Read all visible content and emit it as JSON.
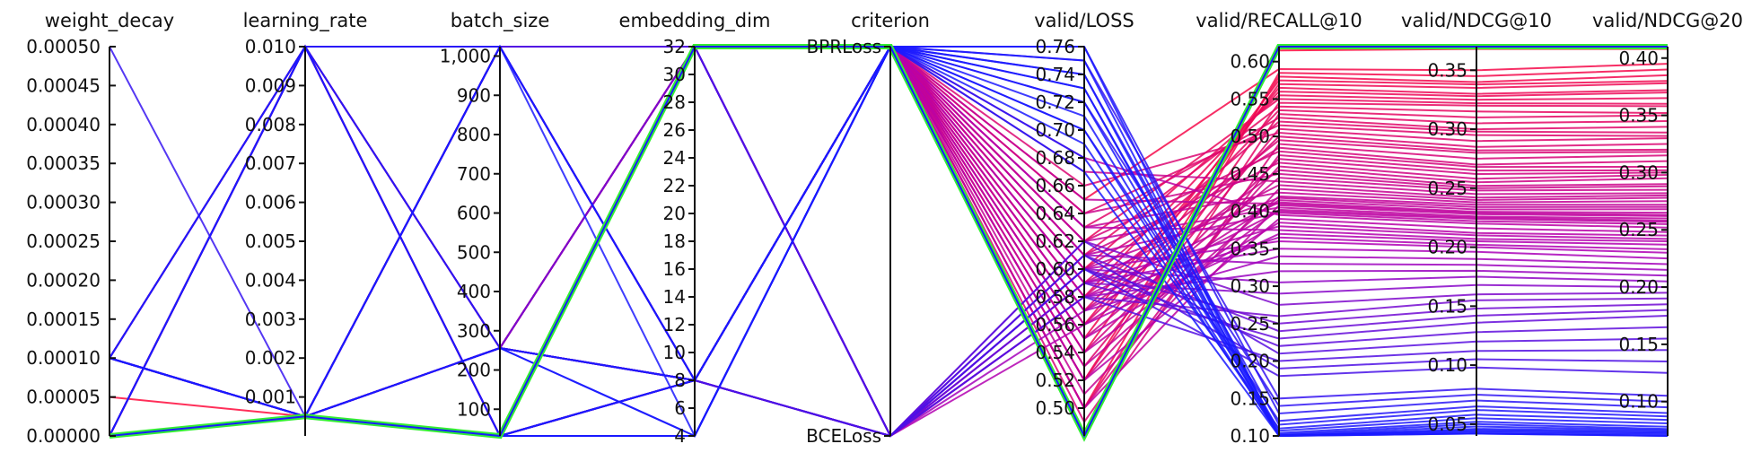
{
  "chart_data": {
    "type": "parallel_coordinates",
    "axes": [
      {
        "key": "weight_decay",
        "label": "weight_decay",
        "range": [
          0,
          0.0005
        ],
        "ticks": [
          0,
          5e-05,
          0.0001,
          0.00015,
          0.0002,
          0.00025,
          0.0003,
          0.00035,
          0.0004,
          0.00045,
          0.0005
        ],
        "tick_labels": [
          "0.00000",
          "0.00005",
          "0.00010",
          "0.00015",
          "0.00020",
          "0.00025",
          "0.00030",
          "0.00035",
          "0.00040",
          "0.00045",
          "0.00050"
        ]
      },
      {
        "key": "learning_rate",
        "label": "learning_rate",
        "range": [
          0,
          0.01
        ],
        "ticks": [
          0.001,
          0.002,
          0.003,
          0.004,
          0.005,
          0.006,
          0.007,
          0.008,
          0.009,
          0.01
        ],
        "tick_labels": [
          "0.001",
          "0.002",
          "0.003",
          "0.004",
          "0.005",
          "0.006",
          "0.007",
          "0.008",
          "0.009",
          "0.010"
        ]
      },
      {
        "key": "batch_size",
        "label": "batch_size",
        "range": [
          32,
          1024
        ],
        "ticks": [
          100,
          200,
          300,
          400,
          500,
          600,
          700,
          800,
          900,
          1000
        ],
        "tick_labels": [
          "100",
          "200",
          "300",
          "400",
          "500",
          "600",
          "700",
          "800",
          "900",
          "1,000"
        ]
      },
      {
        "key": "embedding_dim",
        "label": "embedding_dim",
        "range": [
          4,
          32
        ],
        "ticks": [
          4,
          6,
          8,
          10,
          12,
          14,
          16,
          18,
          20,
          22,
          24,
          26,
          28,
          30,
          32
        ],
        "tick_labels": [
          "4",
          "6",
          "8",
          "10",
          "12",
          "14",
          "16",
          "18",
          "20",
          "22",
          "24",
          "26",
          "28",
          "30",
          "32"
        ]
      },
      {
        "key": "criterion",
        "label": "criterion",
        "range": [
          0,
          1
        ],
        "categorical": true,
        "ticks": [
          0,
          1
        ],
        "tick_labels": [
          "BCELoss",
          "BPRLoss"
        ]
      },
      {
        "key": "valid_loss",
        "label": "valid/LOSS",
        "range": [
          0.48,
          0.76
        ],
        "ticks": [
          0.5,
          0.52,
          0.54,
          0.56,
          0.58,
          0.6,
          0.62,
          0.64,
          0.66,
          0.68,
          0.7,
          0.72,
          0.74,
          0.76
        ],
        "tick_labels": [
          "0.50",
          "0.52",
          "0.54",
          "0.56",
          "0.58",
          "0.60",
          "0.62",
          "0.64",
          "0.66",
          "0.68",
          "0.70",
          "0.72",
          "0.74",
          "0.76"
        ]
      },
      {
        "key": "valid_recall10",
        "label": "valid/RECALL@10",
        "range": [
          0.1,
          0.62
        ],
        "ticks": [
          0.1,
          0.15,
          0.2,
          0.25,
          0.3,
          0.35,
          0.4,
          0.45,
          0.5,
          0.55,
          0.6
        ],
        "tick_labels": [
          "0.10",
          "0.15",
          "0.20",
          "0.25",
          "0.30",
          "0.35",
          "0.40",
          "0.45",
          "0.50",
          "0.55",
          "0.60"
        ]
      },
      {
        "key": "valid_ndcg10",
        "label": "valid/NDCG@10",
        "range": [
          0.04,
          0.37
        ],
        "ticks": [
          0.05,
          0.1,
          0.15,
          0.2,
          0.25,
          0.3,
          0.35
        ],
        "tick_labels": [
          "0.05",
          "0.10",
          "0.15",
          "0.20",
          "0.25",
          "0.30",
          "0.35"
        ]
      },
      {
        "key": "valid_ndcg20",
        "label": "valid/NDCG@20",
        "range": [
          0.07,
          0.41
        ],
        "ticks": [
          0.1,
          0.15,
          0.2,
          0.25,
          0.3,
          0.35,
          0.4
        ],
        "tick_labels": [
          "0.10",
          "0.15",
          "0.20",
          "0.25",
          "0.30",
          "0.35",
          "0.40"
        ]
      }
    ],
    "color_scale": {
      "field": "valid_recall10",
      "low": "#1a1aff",
      "mid": "#b000b5",
      "high": "#ff0a3c"
    },
    "highlight_color": "#33ee33",
    "runs": [
      [
        5e-05,
        0.0005,
        32,
        32,
        1,
        0.48,
        0.62,
        0.37,
        0.41
      ],
      [
        0,
        0.0005,
        32,
        32,
        1,
        0.48,
        0.615,
        0.368,
        0.408
      ],
      [
        0,
        0.01,
        32,
        32,
        1,
        0.65,
        0.59,
        0.35,
        0.395
      ],
      [
        0.0001,
        0.0005,
        32,
        32,
        1,
        0.5,
        0.585,
        0.345,
        0.39
      ],
      [
        0,
        0.0005,
        256,
        32,
        1,
        0.52,
        0.58,
        0.34,
        0.385
      ],
      [
        0.0001,
        0.0005,
        1024,
        32,
        1,
        0.55,
        0.575,
        0.338,
        0.38
      ],
      [
        0,
        0.01,
        1024,
        32,
        1,
        0.54,
        0.57,
        0.335,
        0.378
      ],
      [
        0.0001,
        0.0005,
        256,
        32,
        1,
        0.56,
        0.565,
        0.33,
        0.372
      ],
      [
        0,
        0.0005,
        32,
        8,
        1,
        0.58,
        0.56,
        0.328,
        0.37
      ],
      [
        0.0001,
        0.01,
        32,
        32,
        1,
        0.6,
        0.555,
        0.325,
        0.365
      ],
      [
        0,
        0.0005,
        1024,
        32,
        1,
        0.62,
        0.55,
        0.322,
        0.36
      ],
      [
        0.0001,
        0.0005,
        32,
        8,
        1,
        0.52,
        0.545,
        0.32,
        0.358
      ],
      [
        0,
        0.01,
        256,
        32,
        1,
        0.61,
        0.54,
        0.315,
        0.352
      ],
      [
        0.0001,
        0.0005,
        1024,
        8,
        1,
        0.57,
        0.535,
        0.31,
        0.35
      ],
      [
        0,
        0.0005,
        256,
        8,
        1,
        0.5,
        0.53,
        0.305,
        0.345
      ],
      [
        0.0001,
        0.0005,
        32,
        32,
        1,
        0.63,
        0.525,
        0.3,
        0.34
      ],
      [
        0,
        0.01,
        32,
        8,
        1,
        0.59,
        0.52,
        0.298,
        0.335
      ],
      [
        0,
        0.0005,
        32,
        32,
        1,
        0.64,
        0.515,
        0.295,
        0.332
      ],
      [
        0.0001,
        0.0005,
        256,
        32,
        1,
        0.53,
        0.51,
        0.29,
        0.33
      ],
      [
        0,
        0.0005,
        1024,
        8,
        1,
        0.66,
        0.505,
        0.285,
        0.325
      ],
      [
        0.0001,
        0.01,
        1024,
        32,
        1,
        0.56,
        0.5,
        0.282,
        0.32
      ],
      [
        0,
        0.0005,
        32,
        32,
        1,
        0.58,
        0.495,
        0.28,
        0.318
      ],
      [
        0.0001,
        0.0005,
        32,
        8,
        1,
        0.49,
        0.49,
        0.275,
        0.315
      ],
      [
        0,
        0.01,
        256,
        8,
        1,
        0.6,
        0.485,
        0.27,
        0.31
      ],
      [
        0.0001,
        0.0005,
        256,
        32,
        1,
        0.62,
        0.48,
        0.268,
        0.305
      ],
      [
        0,
        0.0005,
        32,
        32,
        1,
        0.5,
        0.475,
        0.265,
        0.302
      ],
      [
        0.0001,
        0.0005,
        1024,
        32,
        1,
        0.54,
        0.47,
        0.262,
        0.3
      ],
      [
        0,
        0.0005,
        32,
        8,
        1,
        0.61,
        0.465,
        0.258,
        0.298
      ],
      [
        0,
        0.01,
        32,
        32,
        1,
        0.52,
        0.46,
        0.255,
        0.295
      ],
      [
        0.0001,
        0.0005,
        256,
        8,
        1,
        0.57,
        0.455,
        0.252,
        0.29
      ],
      [
        0,
        0.0005,
        1024,
        32,
        1,
        0.64,
        0.45,
        0.25,
        0.288
      ],
      [
        0.0001,
        0.01,
        32,
        8,
        1,
        0.55,
        0.445,
        0.248,
        0.285
      ],
      [
        0,
        0.0005,
        256,
        32,
        1,
        0.67,
        0.44,
        0.245,
        0.282
      ],
      [
        0.0001,
        0.0005,
        32,
        32,
        1,
        0.59,
        0.435,
        0.242,
        0.28
      ],
      [
        0,
        0.0005,
        32,
        32,
        1,
        0.51,
        0.43,
        0.24,
        0.278
      ],
      [
        0.0001,
        0.0005,
        1024,
        8,
        1,
        0.63,
        0.425,
        0.238,
        0.275
      ],
      [
        0,
        0.01,
        256,
        32,
        1,
        0.53,
        0.42,
        0.236,
        0.272
      ],
      [
        0,
        0.0005,
        32,
        8,
        1,
        0.6,
        0.418,
        0.234,
        0.27
      ],
      [
        0.0001,
        0.0005,
        256,
        32,
        1,
        0.56,
        0.415,
        0.232,
        0.268
      ],
      [
        0,
        0.0005,
        1024,
        32,
        1,
        0.58,
        0.412,
        0.23,
        0.265
      ],
      [
        0.0001,
        0.01,
        32,
        32,
        1,
        0.65,
        0.41,
        0.229,
        0.263
      ],
      [
        0,
        0.0005,
        32,
        32,
        1,
        0.5,
        0.408,
        0.228,
        0.262
      ],
      [
        0.0001,
        0.0005,
        32,
        8,
        1,
        0.62,
        0.405,
        0.226,
        0.26
      ],
      [
        0,
        0.0005,
        256,
        8,
        1,
        0.54,
        0.402,
        0.225,
        0.258
      ],
      [
        0.0001,
        0.0005,
        1024,
        32,
        1,
        0.57,
        0.4,
        0.224,
        0.257
      ],
      [
        0,
        0.01,
        32,
        8,
        1,
        0.61,
        0.398,
        0.222,
        0.255
      ],
      [
        0,
        0.0005,
        32,
        32,
        1,
        0.68,
        0.395,
        0.22,
        0.252
      ],
      [
        0.0001,
        0.0005,
        256,
        32,
        1,
        0.52,
        0.39,
        0.216,
        0.248
      ],
      [
        0,
        0.0005,
        1024,
        8,
        1,
        0.55,
        0.385,
        0.212,
        0.245
      ],
      [
        0.0001,
        0.0005,
        32,
        32,
        1,
        0.59,
        0.38,
        0.21,
        0.242
      ],
      [
        0,
        0.01,
        1024,
        32,
        1,
        0.63,
        0.375,
        0.207,
        0.24
      ],
      [
        0,
        0.0005,
        32,
        8,
        0,
        0.56,
        0.37,
        0.205,
        0.237
      ],
      [
        0.0001,
        0.0005,
        256,
        32,
        0,
        0.58,
        0.365,
        0.202,
        0.233
      ],
      [
        0,
        0.0005,
        32,
        32,
        0,
        0.6,
        0.36,
        0.2,
        0.23
      ],
      [
        0.0001,
        0.01,
        1024,
        8,
        0,
        0.59,
        0.35,
        0.196,
        0.225
      ],
      [
        0,
        0.0005,
        256,
        8,
        0,
        0.57,
        0.34,
        0.19,
        0.22
      ],
      [
        0.0001,
        0.0005,
        32,
        32,
        0,
        0.61,
        0.33,
        0.185,
        0.215
      ],
      [
        0,
        0.01,
        32,
        8,
        0,
        0.58,
        0.32,
        0.18,
        0.21
      ],
      [
        0.0001,
        0.0005,
        1024,
        32,
        0,
        0.6,
        0.305,
        0.175,
        0.205
      ],
      [
        0,
        0.0005,
        256,
        8,
        0,
        0.59,
        0.29,
        0.168,
        0.2
      ],
      [
        0.0001,
        0.0005,
        32,
        32,
        0,
        0.62,
        0.275,
        0.16,
        0.195
      ],
      [
        0,
        0.01,
        1024,
        8,
        0,
        0.58,
        0.26,
        0.155,
        0.19
      ],
      [
        0.0001,
        0.0005,
        256,
        32,
        0,
        0.6,
        0.25,
        0.148,
        0.185
      ],
      [
        0,
        0.0005,
        32,
        8,
        0,
        0.61,
        0.24,
        0.142,
        0.18
      ],
      [
        0.0001,
        0.0005,
        1024,
        32,
        0,
        0.59,
        0.23,
        0.136,
        0.175
      ],
      [
        0,
        0.01,
        256,
        8,
        0,
        0.6,
        0.22,
        0.128,
        0.165
      ],
      [
        0.0001,
        0.0005,
        32,
        32,
        0,
        0.62,
        0.21,
        0.12,
        0.155
      ],
      [
        0,
        0.0005,
        256,
        8,
        0,
        0.58,
        0.2,
        0.112,
        0.145
      ],
      [
        0.0001,
        0.0005,
        1024,
        32,
        0,
        0.61,
        0.19,
        0.105,
        0.135
      ],
      [
        0,
        0.0005,
        32,
        8,
        0,
        0.6,
        0.18,
        0.098,
        0.125
      ],
      [
        0.0005,
        0.0005,
        32,
        8,
        1,
        0.75,
        0.15,
        0.08,
        0.105
      ],
      [
        0,
        0.0005,
        256,
        8,
        1,
        0.72,
        0.14,
        0.075,
        0.1
      ],
      [
        0.0001,
        0.01,
        32,
        4,
        1,
        0.76,
        0.13,
        0.07,
        0.095
      ],
      [
        0,
        0.0005,
        1024,
        8,
        1,
        0.7,
        0.12,
        0.065,
        0.09
      ],
      [
        0.0001,
        0.0005,
        32,
        4,
        1,
        0.74,
        0.115,
        0.062,
        0.087
      ],
      [
        0,
        0.01,
        256,
        4,
        1,
        0.68,
        0.11,
        0.058,
        0.084
      ],
      [
        0.0001,
        0.0005,
        32,
        8,
        1,
        0.73,
        0.107,
        0.055,
        0.081
      ],
      [
        0,
        0.0005,
        1024,
        4,
        1,
        0.71,
        0.104,
        0.052,
        0.078
      ],
      [
        0.0001,
        0.0005,
        256,
        8,
        1,
        0.69,
        0.102,
        0.05,
        0.076
      ],
      [
        0,
        0.0005,
        32,
        4,
        1,
        0.75,
        0.101,
        0.048,
        0.075
      ],
      [
        0.0001,
        0.01,
        1024,
        8,
        1,
        0.72,
        0.1,
        0.046,
        0.074
      ],
      [
        0,
        0.0005,
        32,
        8,
        1,
        0.67,
        0.1,
        0.045,
        0.073
      ],
      [
        0.0001,
        0.0005,
        256,
        4,
        1,
        0.74,
        0.1,
        0.044,
        0.072
      ],
      [
        0,
        0.0005,
        32,
        4,
        1,
        0.7,
        0.1,
        0.043,
        0.071
      ],
      [
        0.0001,
        0.0005,
        1024,
        8,
        1,
        0.76,
        0.1,
        0.042,
        0.07
      ],
      [
        0,
        0.01,
        32,
        4,
        1,
        0.73,
        0.1,
        0.042,
        0.07
      ]
    ],
    "highlight_run": [
      0,
      0.0005,
      32,
      32,
      1,
      0.48,
      0.62,
      0.37,
      0.41
    ]
  }
}
